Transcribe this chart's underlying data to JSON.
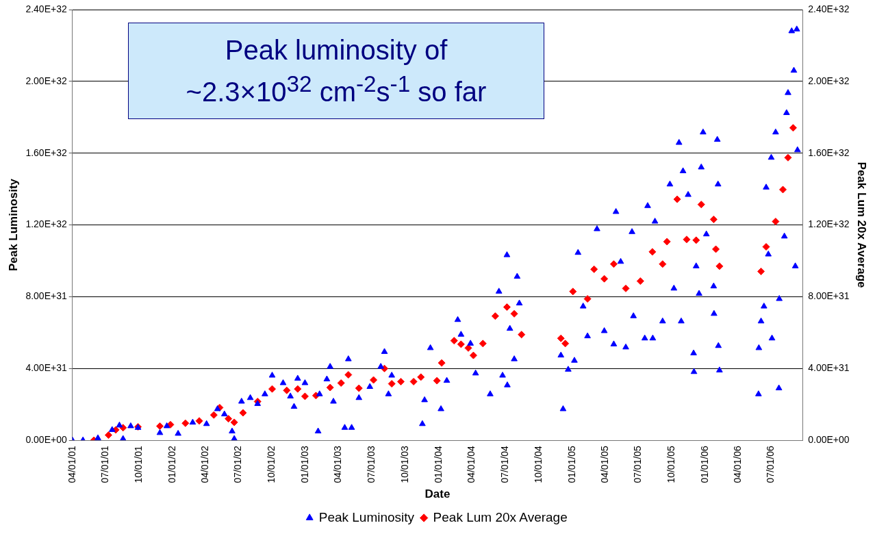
{
  "chart_data": {
    "type": "scatter",
    "xlabel": "Date",
    "ylabel": "Peak Luminosity",
    "y2label": "Peak Lum 20x Average",
    "annotations": [
      "Peak luminosity of\n~2.3×10$^{32}$ cm$^{-2}$s$^{-1}$ so far"
    ],
    "xlim": [
      "2001-04-01",
      "2006-09-25"
    ],
    "xticks": [
      {
        "value": "2001-04-01",
        "label": "04/01/01"
      },
      {
        "value": "2001-07-01",
        "label": "07/01/01"
      },
      {
        "value": "2001-10-01",
        "label": "10/01/01"
      },
      {
        "value": "2002-01-01",
        "label": "01/01/02"
      },
      {
        "value": "2002-04-01",
        "label": "04/01/02"
      },
      {
        "value": "2002-07-01",
        "label": "07/01/02"
      },
      {
        "value": "2002-10-01",
        "label": "10/01/02"
      },
      {
        "value": "2003-01-01",
        "label": "01/01/03"
      },
      {
        "value": "2003-04-01",
        "label": "04/01/03"
      },
      {
        "value": "2003-07-01",
        "label": "07/01/03"
      },
      {
        "value": "2003-10-01",
        "label": "10/01/03"
      },
      {
        "value": "2004-01-01",
        "label": "01/01/04"
      },
      {
        "value": "2004-04-01",
        "label": "04/01/04"
      },
      {
        "value": "2004-07-01",
        "label": "07/01/04"
      },
      {
        "value": "2004-10-01",
        "label": "10/01/04"
      },
      {
        "value": "2005-01-01",
        "label": "01/01/05"
      },
      {
        "value": "2005-04-01",
        "label": "04/01/05"
      },
      {
        "value": "2005-07-01",
        "label": "07/01/05"
      },
      {
        "value": "2005-10-01",
        "label": "10/01/05"
      },
      {
        "value": "2006-01-01",
        "label": "01/01/06"
      },
      {
        "value": "2006-04-01",
        "label": "04/01/06"
      },
      {
        "value": "2006-07-01",
        "label": "07/01/06"
      }
    ],
    "ylim": [
      0,
      2.4e+32
    ],
    "yticks": [
      {
        "value": 0,
        "label": "0.00E+00"
      },
      {
        "value": 4e+31,
        "label": "4.00E+31"
      },
      {
        "value": 8e+31,
        "label": "8.00E+31"
      },
      {
        "value": 1.2e+32,
        "label": "1.20E+32"
      },
      {
        "value": 1.6e+32,
        "label": "1.60E+32"
      },
      {
        "value": 2e+32,
        "label": "2.00E+32"
      },
      {
        "value": 2.4e+32,
        "label": "2.40E+32"
      }
    ],
    "y2lim": [
      0,
      2.4e+32
    ],
    "y2ticks": [
      {
        "value": 0,
        "label": "0.00E+00"
      },
      {
        "value": 4e+31,
        "label": "4.00E+31"
      },
      {
        "value": 8e+31,
        "label": "8.00E+31"
      },
      {
        "value": 1.2e+32,
        "label": "1.20E+32"
      },
      {
        "value": 1.6e+32,
        "label": "1.60E+32"
      },
      {
        "value": 2e+32,
        "label": "2.00E+32"
      },
      {
        "value": 2.4e+32,
        "label": "2.40E+32"
      }
    ],
    "grid": "y",
    "legend": "bottom",
    "series": [
      {
        "name": "Peak Luminosity",
        "color": "#0000ff",
        "marker": "triangle",
        "x": [
          "2001-04-01",
          "2001-04-30",
          "2001-06-10",
          "2001-07-19",
          "2001-08-08",
          "2001-09-08",
          "2001-09-28",
          "2001-08-18",
          "2001-11-27",
          "2001-12-16",
          "2002-01-16",
          "2002-02-25",
          "2002-04-04",
          "2002-05-04",
          "2002-05-23",
          "2002-06-13",
          "2002-06-19",
          "2002-07-09",
          "2002-08-02",
          "2002-08-22",
          "2002-09-11",
          "2002-10-01",
          "2002-10-31",
          "2002-11-20",
          "2002-12-10",
          "2002-12-30",
          "2002-11-30",
          "2003-02-04",
          "2003-02-08",
          "2003-02-28",
          "2003-03-09",
          "2003-03-18",
          "2003-04-18",
          "2003-05-07",
          "2003-04-28",
          "2003-05-27",
          "2003-06-26",
          "2003-07-26",
          "2003-08-05",
          "2003-08-25",
          "2003-08-16",
          "2003-11-17",
          "2003-11-23",
          "2003-12-09",
          "2004-01-07",
          "2004-01-23",
          "2004-02-22",
          "2004-03-02",
          "2004-03-28",
          "2004-04-11",
          "2004-05-21",
          "2004-06-14",
          "2004-07-06",
          "2004-08-03",
          "2004-06-24",
          "2004-07-07",
          "2004-07-26",
          "2004-08-09",
          "2004-07-14",
          "2004-12-07",
          "2004-12-01",
          "2004-12-21",
          "2005-01-07",
          "2005-01-17",
          "2005-01-31",
          "2005-02-12",
          "2005-03-10",
          "2005-03-30",
          "2005-04-25",
          "2005-05-01",
          "2005-05-14",
          "2005-05-28",
          "2005-06-14",
          "2005-06-18",
          "2005-07-19",
          "2005-07-27",
          "2005-08-16",
          "2005-08-10",
          "2005-09-06",
          "2005-09-26",
          "2005-10-07",
          "2005-10-21",
          "2005-11-01",
          "2005-10-27",
          "2005-11-15",
          "2005-11-30",
          "2005-12-01",
          "2005-12-07",
          "2005-12-15",
          "2005-12-26",
          "2005-12-21",
          "2006-01-04",
          "2006-02-03",
          "2006-02-05",
          "2006-01-24",
          "2006-01-25",
          "2006-02-06",
          "2006-02-09",
          "2006-05-27",
          "2006-05-28",
          "2006-06-03",
          "2006-06-11",
          "2006-06-17",
          "2006-06-23",
          "2006-07-01",
          "2006-07-03",
          "2006-07-13",
          "2006-07-22",
          "2006-07-23",
          "2006-08-06",
          "2006-08-12",
          "2006-08-16",
          "2006-08-26",
          "2006-09-01",
          "2006-09-05",
          "2006-09-09",
          "2006-09-11"
        ],
        "values": [
          0,
          0,
          1.2e+30,
          5.8e+30,
          8.3e+30,
          7.9e+30,
          7e+30,
          8e+29,
          4.1e+30,
          7.9e+30,
          3.7e+30,
          9.9e+30,
          9.1e+30,
          1.74e+31,
          1.45e+31,
          5e+30,
          8e+29,
          2.16e+31,
          2.36e+31,
          2.03e+31,
          2.57e+31,
          3.61e+31,
          3.19e+31,
          2.45e+31,
          3.44e+31,
          3.19e+31,
          1.87e+31,
          5e+30,
          2.57e+31,
          3.4e+31,
          4.1e+31,
          2.16e+31,
          7e+30,
          7e+30,
          4.52e+31,
          2.36e+31,
          2.98e+31,
          4.1e+31,
          4.93e+31,
          3.61e+31,
          2.57e+31,
          9.1e+30,
          2.24e+31,
          5.14e+31,
          1.74e+31,
          3.32e+31,
          6.71e+31,
          5.89e+31,
          5.39e+31,
          3.73e+31,
          2.57e+31,
          8.29e+31,
          1.032e+32,
          9.12e+31,
          3.61e+31,
          3.07e+31,
          4.52e+31,
          7.63e+31,
          6.22e+31,
          1.74e+31,
          4.73e+31,
          3.94e+31,
          4.44e+31,
          1.045e+32,
          7.46e+31,
          5.8e+31,
          1.177e+32,
          6.09e+31,
          5.35e+31,
          1.273e+32,
          9.95e+31,
          5.18e+31,
          1.161e+32,
          6.92e+31,
          5.68e+31,
          1.306e+32,
          1.219e+32,
          5.68e+31,
          6.63e+31,
          1.426e+32,
          8.46e+31,
          1.658e+32,
          1.5e+32,
          6.63e+31,
          1.368e+32,
          4.85e+31,
          3.81e+31,
          9.7e+31,
          8.17e+31,
          1.716e+32,
          1.521e+32,
          1.148e+32,
          1.675e+32,
          1.426e+32,
          8.58e+31,
          7.05e+31,
          5.26e+31,
          3.9e+31,
          2.57e+31,
          5.14e+31,
          6.63e+31,
          7.46e+31,
          1.409e+32,
          1.036e+32,
          1.575e+32,
          5.68e+31,
          1.716e+32,
          2.9e+31,
          7.88e+31,
          1.136e+32,
          1.824e+32,
          1.936e+32,
          2.28e+32,
          2.06e+32,
          9.7e+31,
          2.29e+32,
          1.617e+32
        ]
      },
      {
        "name": "Peak Lum 20x Average",
        "color": "#ff0000",
        "marker": "diamond",
        "axis": "y2",
        "x": [
          "2001-05-30",
          "2001-07-09",
          "2001-07-29",
          "2001-08-18",
          "2001-09-28",
          "2001-11-27",
          "2001-12-26",
          "2002-02-05",
          "2002-03-15",
          "2002-04-24",
          "2002-05-10",
          "2002-06-03",
          "2002-06-19",
          "2002-07-13",
          "2002-08-22",
          "2002-10-01",
          "2002-11-10",
          "2002-12-10",
          "2002-12-30",
          "2003-01-29",
          "2003-03-09",
          "2003-04-08",
          "2003-04-28",
          "2003-05-27",
          "2003-07-06",
          "2003-08-05",
          "2003-08-25",
          "2003-09-19",
          "2003-10-24",
          "2003-11-13",
          "2003-12-27",
          "2004-01-09",
          "2004-02-12",
          "2004-03-02",
          "2004-03-22",
          "2004-04-05",
          "2004-05-01",
          "2004-06-04",
          "2004-07-06",
          "2004-07-26",
          "2004-08-15",
          "2004-12-01",
          "2004-12-13",
          "2005-01-03",
          "2005-02-12",
          "2005-03-02",
          "2005-03-30",
          "2005-04-25",
          "2005-05-28",
          "2005-07-07",
          "2005-08-09",
          "2005-09-06",
          "2005-09-18",
          "2005-10-16",
          "2005-11-11",
          "2005-12-07",
          "2005-12-21",
          "2006-01-24",
          "2006-01-30",
          "2006-02-09",
          "2006-06-03",
          "2006-06-17",
          "2006-07-13",
          "2006-08-02",
          "2006-08-16",
          "2006-08-30"
        ],
        "values": [
          0,
          2.9e+30,
          5.8e+30,
          7e+30,
          7.5e+30,
          7.9e+30,
          8.7e+30,
          9.5e+30,
          1.08e+31,
          1.41e+31,
          1.82e+31,
          1.2e+31,
          1e+31,
          1.53e+31,
          2.16e+31,
          2.86e+31,
          2.78e+31,
          2.86e+31,
          2.45e+31,
          2.49e+31,
          2.94e+31,
          3.19e+31,
          3.65e+31,
          2.9e+31,
          3.36e+31,
          4e+31,
          3.15e+31,
          3.27e+31,
          3.27e+31,
          3.52e+31,
          3.32e+31,
          4.31e+31,
          5.55e+31,
          5.35e+31,
          5.14e+31,
          4.73e+31,
          5.39e+31,
          6.92e+31,
          7.42e+31,
          7.05e+31,
          5.89e+31,
          5.68e+31,
          5.39e+31,
          8.29e+31,
          7.88e+31,
          9.53e+31,
          9e+31,
          9.82e+31,
          8.46e+31,
          8.87e+31,
          1.05e+32,
          9.82e+31,
          1.107e+32,
          1.343e+32,
          1.119e+32,
          1.115e+32,
          1.314e+32,
          1.231e+32,
          1.065e+32,
          9.7e+31,
          9.41e+31,
          1.078e+32,
          1.219e+32,
          1.397e+32,
          1.575e+32,
          1.741e+32
        ]
      }
    ]
  }
}
